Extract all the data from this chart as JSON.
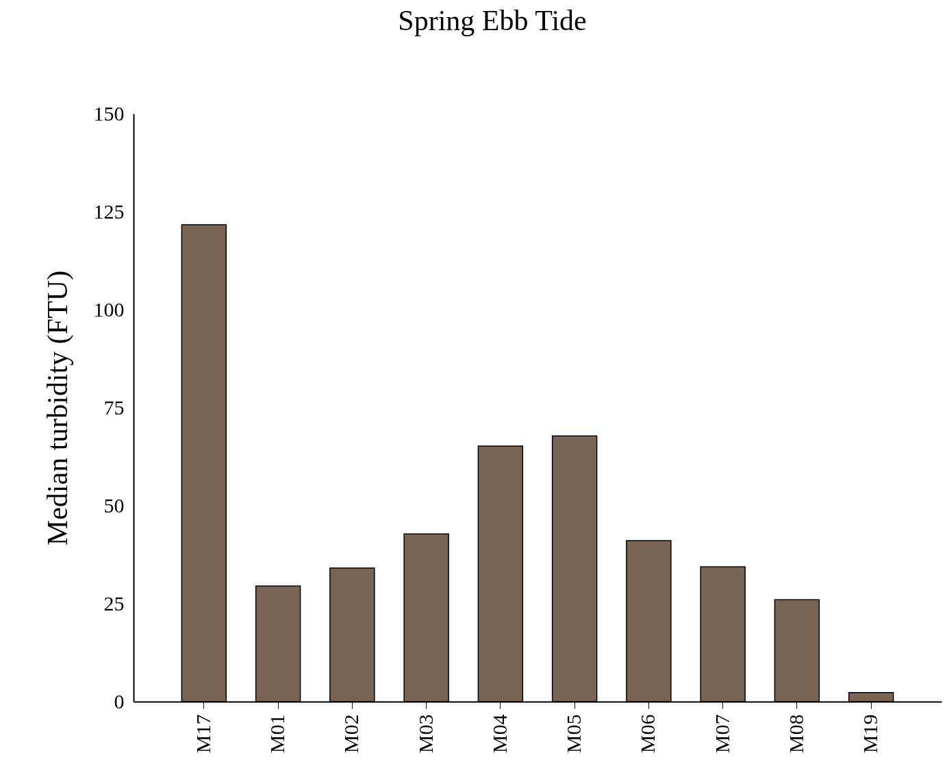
{
  "chart_data": {
    "type": "bar",
    "title": "Spring Ebb Tide",
    "ylabel": "Median turbidity (FTU)",
    "categories": [
      "M17",
      "M01",
      "M02",
      "M03",
      "M04",
      "M05",
      "M06",
      "M07",
      "M08",
      "M19"
    ],
    "values": [
      121.7,
      29.5,
      34.1,
      42.8,
      65.2,
      67.8,
      41.1,
      34.4,
      26.0,
      2.3
    ],
    "color": "#7a6555",
    "ylim": [
      0,
      150
    ],
    "yticks": [
      0,
      25,
      50,
      75,
      100,
      125,
      150
    ]
  }
}
